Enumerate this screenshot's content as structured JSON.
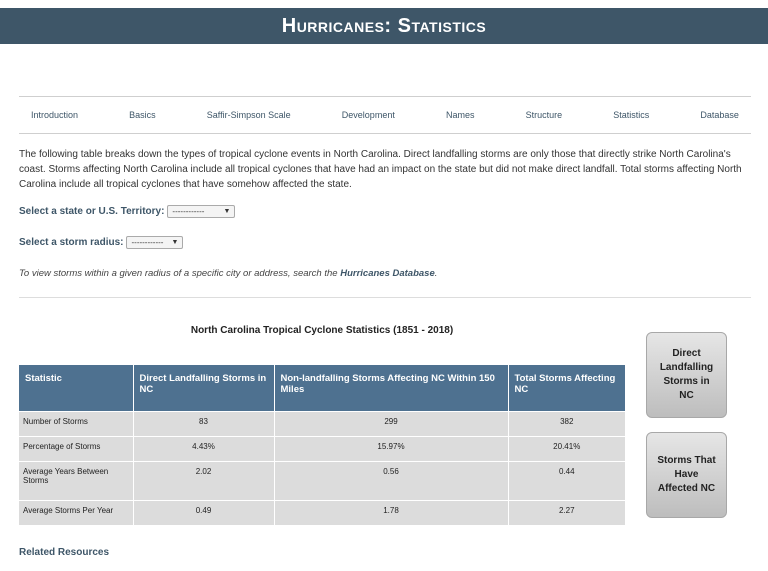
{
  "header": {
    "title": "Hurricanes: Statistics"
  },
  "nav": {
    "items": [
      {
        "label": "Introduction"
      },
      {
        "label": "Basics"
      },
      {
        "label": "Saffir-Simpson Scale"
      },
      {
        "label": "Development"
      },
      {
        "label": "Names"
      },
      {
        "label": "Structure"
      },
      {
        "label": "Statistics"
      },
      {
        "label": "Database"
      }
    ]
  },
  "intro": {
    "text": "The following table breaks down the types of tropical cyclone events in North Carolina. Direct landfalling storms are only those that directly strike North Carolina's coast. Storms affecting North Carolina include all tropical cyclones that have had an impact on the state but did not make direct landfall. Total storms affecting North Carolina include all tropical cyclones that have somehow affected the state."
  },
  "filters": {
    "state_label": "Select a state or U.S. Territory:",
    "state_value": "------------",
    "radius_label": "Select a storm radius:",
    "radius_value": "------------"
  },
  "note": {
    "prefix": "To view storms within a given radius of a specific city or address, search the ",
    "link": "Hurricanes Database",
    "suffix": "."
  },
  "table": {
    "title": "North Carolina Tropical Cyclone Statistics (1851 - 2018)",
    "headers": [
      "Statistic",
      "Direct Landfalling Storms in NC",
      "Non-landfalling Storms Affecting NC Within 150 Miles",
      "Total Storms Affecting NC"
    ],
    "rows": [
      [
        "Number of Storms",
        "83",
        "299",
        "382"
      ],
      [
        "Percentage of Storms",
        "4.43%",
        "15.97%",
        "20.41%"
      ],
      [
        "Average Years Between Storms",
        "2.02",
        "0.56",
        "0.44"
      ],
      [
        "Average Storms Per Year",
        "0.49",
        "1.78",
        "2.27"
      ]
    ]
  },
  "side_buttons": {
    "direct": "Direct Landfalling Storms in NC",
    "affected": "Storms That Have Affected NC"
  },
  "footer": {
    "related": "Related Resources"
  },
  "colors": {
    "banner": "#3e5668",
    "table_header": "#4e7190",
    "table_cell": "#dcdcdc",
    "link": "#3e5668"
  }
}
